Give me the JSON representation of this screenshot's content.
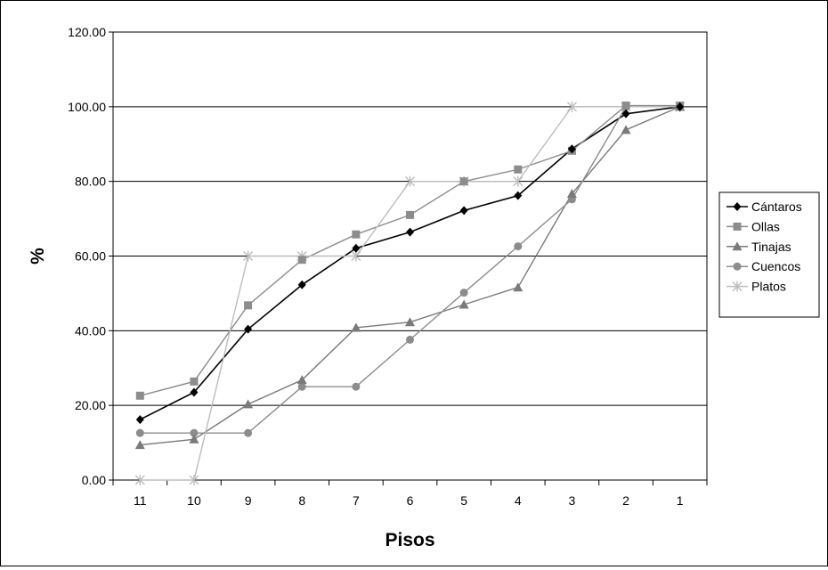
{
  "chart_data": {
    "type": "line",
    "title": "",
    "xlabel": "Pisos",
    "ylabel": "%",
    "categories": [
      "11",
      "10",
      "9",
      "8",
      "7",
      "6",
      "5",
      "4",
      "3",
      "2",
      "1"
    ],
    "ylim": [
      0,
      120
    ],
    "yticks": [
      "0.00",
      "20.00",
      "40.00",
      "60.00",
      "80.00",
      "100.00",
      "120.00"
    ],
    "grid": "horizontal",
    "legend_position": "right",
    "series": [
      {
        "name": "Cántaros",
        "marker": "diamond",
        "color": "#000000",
        "values": [
          16.2,
          23.5,
          40.4,
          52.3,
          62.1,
          66.4,
          72.2,
          76.2,
          88.7,
          98.1,
          100
        ]
      },
      {
        "name": "Ollas",
        "marker": "square",
        "color": "#8c8c8c",
        "values": [
          22.6,
          26.4,
          46.8,
          59.0,
          65.8,
          71.0,
          80.0,
          83.2,
          88.2,
          100.3,
          100.3
        ]
      },
      {
        "name": "Tinajas",
        "marker": "triangle",
        "color": "#7a7a7a",
        "values": [
          9.4,
          10.9,
          20.3,
          26.8,
          40.8,
          42.3,
          47.0,
          51.6,
          76.7,
          93.8,
          100
        ]
      },
      {
        "name": "Cuencos",
        "marker": "circle",
        "color": "#8c8c8c",
        "values": [
          12.6,
          12.6,
          12.6,
          25.0,
          25.0,
          37.6,
          50.2,
          62.6,
          75.2,
          100,
          100
        ]
      },
      {
        "name": "Platos",
        "marker": "star",
        "color": "#bdbdbd",
        "values": [
          0,
          0,
          60,
          60,
          60,
          80,
          80,
          80,
          100,
          100,
          100
        ]
      }
    ]
  }
}
